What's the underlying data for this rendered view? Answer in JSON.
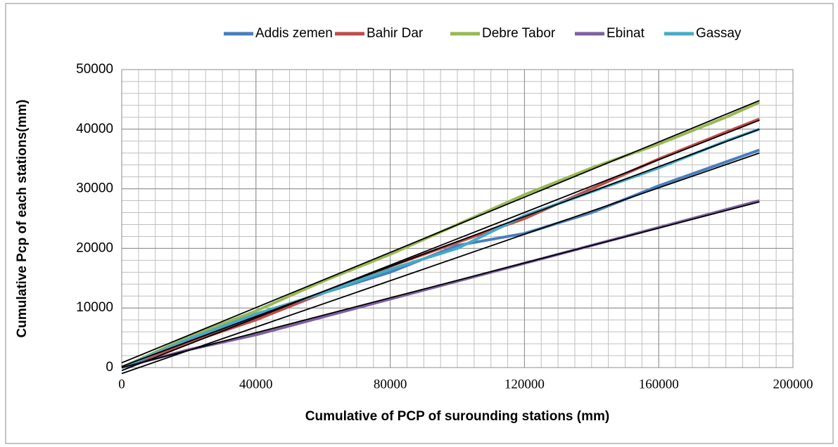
{
  "chart_data": {
    "type": "line",
    "x_label": "Cumulative of PCP of surounding stations (mm)",
    "y_label": "Cumulative Pcp of each stations(mm)",
    "x": [
      0,
      20000,
      40000,
      60000,
      80000,
      100000,
      120000,
      140000,
      160000,
      180000,
      190000
    ],
    "series": [
      {
        "name": "Addis zemen",
        "color": "#4a7ebb",
        "values": [
          0,
          4500,
          8500,
          12500,
          16000,
          20500,
          22500,
          26000,
          30500,
          34500,
          36500
        ],
        "trend": {
          "x": [
            0,
            190000
          ],
          "values": [
            -1000,
            36000
          ]
        }
      },
      {
        "name": "Bahir Dar",
        "color": "#be4b48",
        "values": [
          0,
          4200,
          8000,
          12500,
          17000,
          21000,
          25000,
          30000,
          35000,
          39500,
          41700
        ],
        "trend": {
          "x": [
            0,
            190000
          ],
          "values": [
            -500,
            41500
          ]
        }
      },
      {
        "name": "Debre Tabor",
        "color": "#98b954",
        "values": [
          0,
          5200,
          9500,
          14500,
          19000,
          24000,
          29000,
          33500,
          37500,
          42000,
          44500
        ],
        "trend": {
          "x": [
            0,
            190000
          ],
          "values": [
            800,
            44800
          ]
        }
      },
      {
        "name": "Ebinat",
        "color": "#7d60a0",
        "values": [
          0,
          3000,
          5500,
          8500,
          11500,
          14500,
          17500,
          20500,
          23500,
          26500,
          28000
        ],
        "trend": {
          "x": [
            0,
            190000
          ],
          "values": [
            0,
            27800
          ]
        }
      },
      {
        "name": "Gassay",
        "color": "#46aac5",
        "values": [
          0,
          4800,
          9000,
          12500,
          16500,
          20000,
          25500,
          29500,
          33500,
          38000,
          40000
        ],
        "trend": {
          "x": [
            0,
            190000
          ],
          "values": [
            200,
            40000
          ]
        }
      }
    ],
    "trend_color": "#000000",
    "xlim": [
      0,
      200000
    ],
    "xticks": [
      0,
      40000,
      80000,
      120000,
      160000,
      200000
    ],
    "ylim": [
      0,
      50000
    ],
    "yticks": [
      0,
      10000,
      20000,
      30000,
      40000,
      50000
    ],
    "grid": true,
    "minor_grid": {
      "x": 5000,
      "y": 2000
    },
    "legend": "top"
  }
}
